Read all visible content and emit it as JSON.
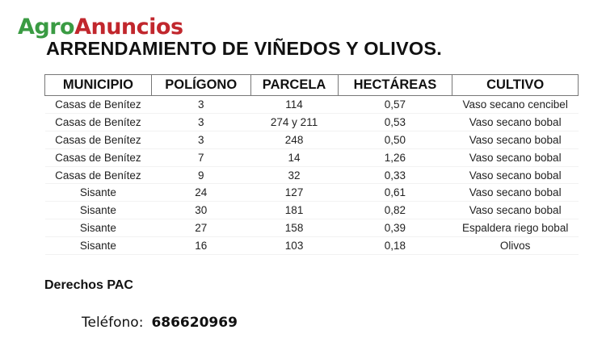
{
  "logo": {
    "part1": "Agro",
    "part2": "Anuncios",
    "colors": {
      "agro": "#3a9b43",
      "anuncios": "#c1272d"
    }
  },
  "title": "ARRENDAMIENTO DE VIÑEDOS Y OLIVOS.",
  "table": {
    "headers": [
      "MUNICIPIO",
      "POLÍGONO",
      "PARCELA",
      "HECTÁREAS",
      "CULTIVO"
    ],
    "rows": [
      [
        "Casas de Benítez",
        "3",
        "114",
        "0,57",
        "Vaso secano cencibel"
      ],
      [
        "Casas de Benítez",
        "3",
        "274 y 211",
        "0,53",
        "Vaso secano bobal"
      ],
      [
        "Casas de Benítez",
        "3",
        "248",
        "0,50",
        "Vaso secano bobal"
      ],
      [
        "Casas de Benítez",
        "7",
        "14",
        "1,26",
        "Vaso secano bobal"
      ],
      [
        "Casas de Benítez",
        "9",
        "32",
        "0,33",
        "Vaso secano bobal"
      ],
      [
        "Sisante",
        "24",
        "127",
        "0,61",
        "Vaso secano bobal"
      ],
      [
        "Sisante",
        "30",
        "181",
        "0,82",
        "Vaso secano bobal"
      ],
      [
        "Sisante",
        "27",
        "158",
        "0,39",
        "Espaldera riego bobal"
      ],
      [
        "Sisante",
        "16",
        "103",
        "0,18",
        "Olivos"
      ]
    ]
  },
  "pac": "Derechos PAC",
  "phone": {
    "label": "Teléfono:",
    "number": "686620969"
  }
}
